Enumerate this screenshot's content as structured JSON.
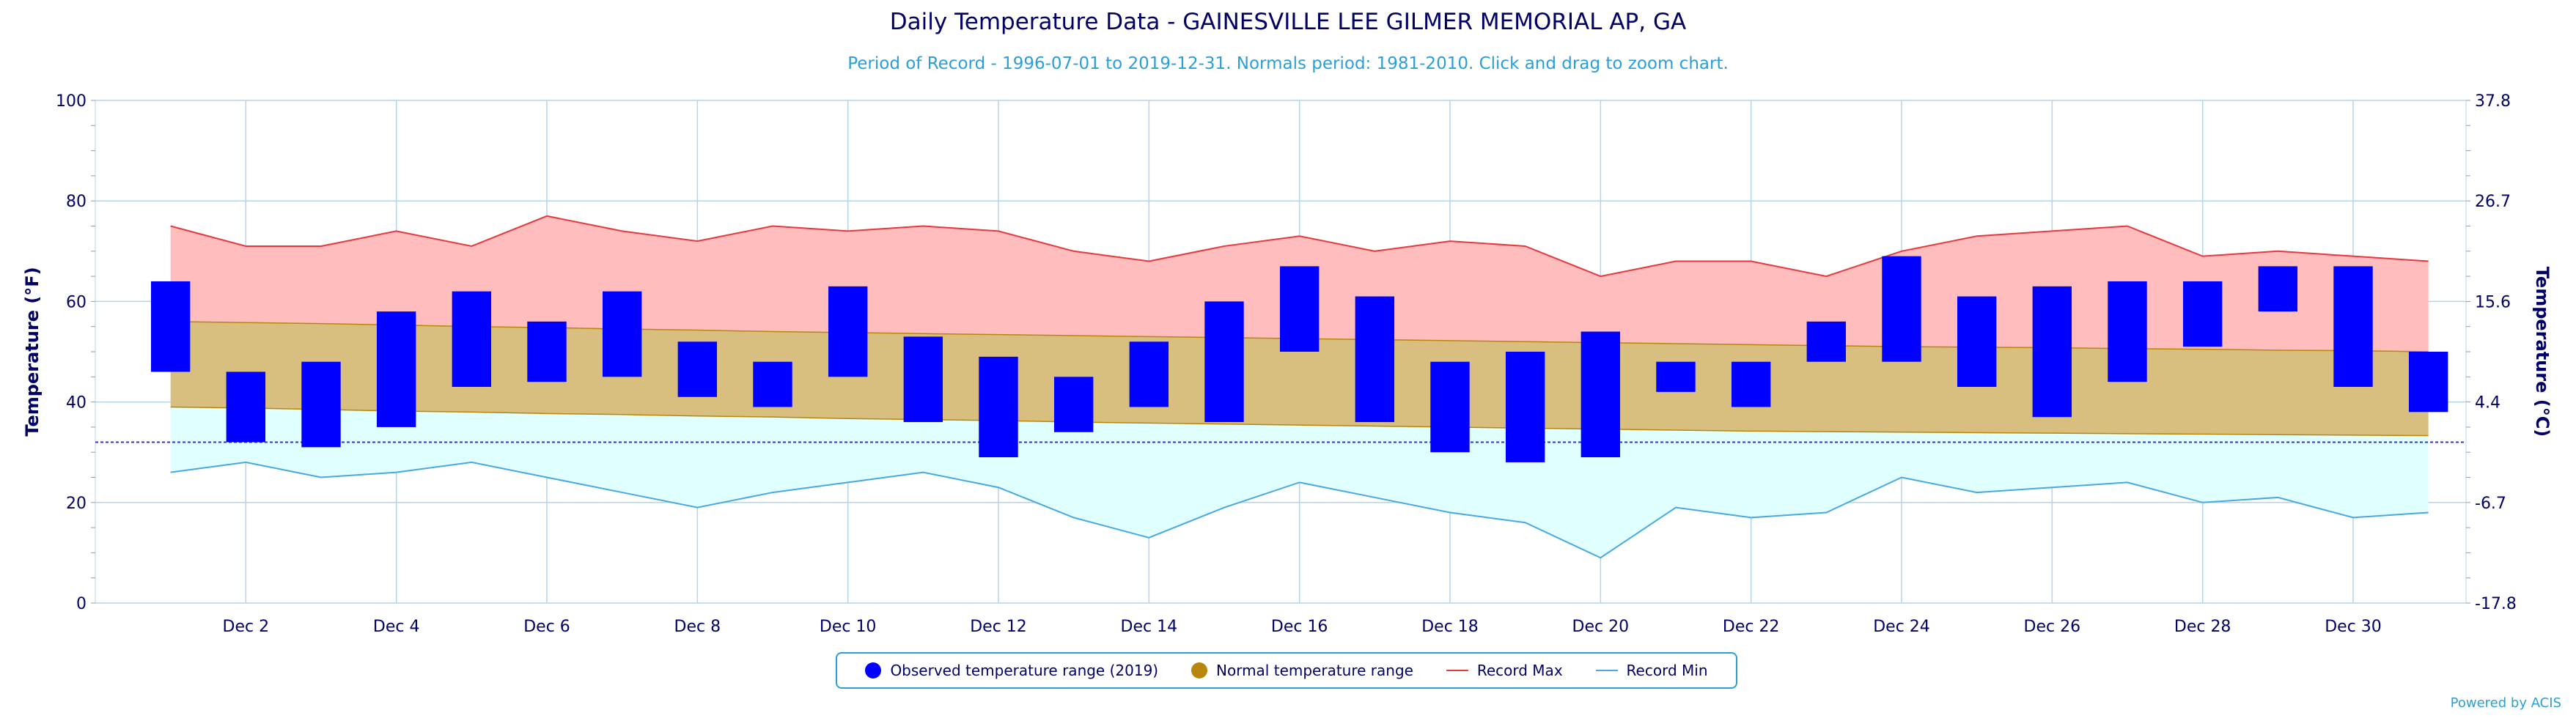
{
  "title": "Daily Temperature Data - GAINESVILLE LEE GILMER MEMORIAL AP, GA",
  "subtitle": "Period of Record - 1996-07-01 to 2019-12-31. Normals period: 1981-2010. Click and drag to zoom chart.",
  "credits": "Powered by ACIS",
  "colors": {
    "observed": "#0000ff",
    "normal_fill": "#d9bf7f",
    "normal_line": "#b8860b",
    "legend_normal": "#b8860b",
    "record_max_line": "#e8383d",
    "record_max_fill": "#ffbdbd",
    "record_min_line": "#4aa8e0",
    "record_min_fill": "#e0ffff",
    "axis_text": "#000066",
    "grid": "#b3d4ec",
    "freezing": "#3333cc"
  },
  "legend": [
    {
      "label": "Observed temperature range (2019)",
      "symbol": "circle",
      "color": "#0000ff"
    },
    {
      "label": "Normal temperature range",
      "symbol": "circle",
      "color": "#b8860b"
    },
    {
      "label": "Record Max",
      "symbol": "line",
      "color": "#e8383d"
    },
    {
      "label": "Record Min",
      "symbol": "line",
      "color": "#4aa8e0"
    }
  ],
  "chart_data": {
    "type": "bar",
    "title": "Daily Temperature Data - GAINESVILLE LEE GILMER MEMORIAL AP, GA",
    "ylabel": "Temperature (°F)",
    "y2label": "Temperature (°C)",
    "ylim": [
      0,
      100
    ],
    "yticks": [
      0,
      20,
      40,
      60,
      80,
      100
    ],
    "y2ticks": [
      "-17.8",
      "-6.7",
      "4.4",
      "15.6",
      "26.7",
      "37.8"
    ],
    "xlim": [
      0,
      31.5
    ],
    "xticks": [
      {
        "day": 2,
        "label": "Dec 2"
      },
      {
        "day": 4,
        "label": "Dec 4"
      },
      {
        "day": 6,
        "label": "Dec 6"
      },
      {
        "day": 8,
        "label": "Dec 8"
      },
      {
        "day": 10,
        "label": "Dec 10"
      },
      {
        "day": 12,
        "label": "Dec 12"
      },
      {
        "day": 14,
        "label": "Dec 14"
      },
      {
        "day": 16,
        "label": "Dec 16"
      },
      {
        "day": 18,
        "label": "Dec 18"
      },
      {
        "day": 20,
        "label": "Dec 20"
      },
      {
        "day": 22,
        "label": "Dec 22"
      },
      {
        "day": 24,
        "label": "Dec 24"
      },
      {
        "day": 26,
        "label": "Dec 26"
      },
      {
        "day": 28,
        "label": "Dec 28"
      },
      {
        "day": 30,
        "label": "Dec 30"
      }
    ],
    "freezing_line": 32,
    "grid": true,
    "legend_position": "bottom",
    "days": [
      1,
      2,
      3,
      4,
      5,
      6,
      7,
      8,
      9,
      10,
      11,
      12,
      13,
      14,
      15,
      16,
      17,
      18,
      19,
      20,
      21,
      22,
      23,
      24,
      25,
      26,
      27,
      28,
      29,
      30,
      31
    ],
    "series": [
      {
        "name": "Observed temperature range (2019)",
        "low": [
          46,
          32,
          31,
          35,
          43,
          44,
          45,
          41,
          39,
          45,
          36,
          29,
          34,
          39,
          36,
          50,
          36,
          30,
          28,
          29,
          42,
          39,
          48,
          48,
          43,
          37,
          44,
          51,
          58,
          43,
          38
        ],
        "high": [
          64,
          46,
          48,
          58,
          62,
          56,
          62,
          52,
          48,
          63,
          53,
          49,
          45,
          52,
          60,
          67,
          61,
          48,
          50,
          54,
          48,
          48,
          56,
          69,
          61,
          63,
          64,
          64,
          67,
          67,
          50
        ]
      },
      {
        "name": "Normal temperature range",
        "low": [
          39,
          38.8,
          38.5,
          38.2,
          38,
          37.7,
          37.5,
          37.2,
          37,
          36.7,
          36.5,
          36.3,
          36,
          35.8,
          35.6,
          35.4,
          35.2,
          35,
          34.8,
          34.6,
          34.4,
          34.2,
          34.1,
          34,
          33.9,
          33.8,
          33.7,
          33.6,
          33.5,
          33.4,
          33.3
        ],
        "high": [
          56,
          55.8,
          55.6,
          55.3,
          55,
          54.8,
          54.5,
          54.3,
          54,
          53.8,
          53.6,
          53.4,
          53.2,
          53,
          52.8,
          52.6,
          52.4,
          52.2,
          52,
          51.8,
          51.6,
          51.4,
          51.2,
          51,
          50.9,
          50.8,
          50.6,
          50.5,
          50.3,
          50.2,
          50
        ]
      },
      {
        "name": "Record Max",
        "values": [
          75,
          71,
          71,
          74,
          71,
          77,
          74,
          72,
          75,
          74,
          75,
          74,
          70,
          68,
          71,
          73,
          70,
          72,
          71,
          65,
          68,
          68,
          65,
          70,
          73,
          74,
          75,
          69,
          70,
          69,
          68
        ]
      },
      {
        "name": "Record Min",
        "values": [
          26,
          28,
          25,
          26,
          28,
          25,
          22,
          19,
          22,
          24,
          26,
          23,
          17,
          13,
          19,
          24,
          21,
          18,
          16,
          9,
          19,
          17,
          18,
          25,
          22,
          23,
          24,
          20,
          21,
          17,
          18
        ]
      }
    ]
  }
}
